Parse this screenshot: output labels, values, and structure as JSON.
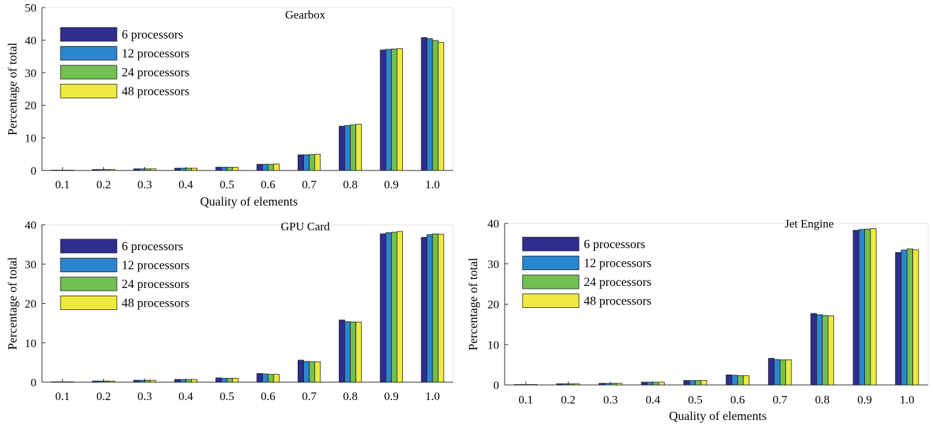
{
  "series_colors": [
    "#2e2e8e",
    "#2b86cf",
    "#72bf52",
    "#ede93f"
  ],
  "chart_data": [
    {
      "type": "bar",
      "title": "Gearbox",
      "xlabel": "Quality of elements",
      "ylabel": "Percentage of total",
      "ylim": [
        0,
        50
      ],
      "yticks": [
        "0",
        "10",
        "20",
        "30",
        "40",
        "50"
      ],
      "grid": false,
      "legend_position": "top-left",
      "categories": [
        "0.1",
        "0.2",
        "0.3",
        "0.4",
        "0.5",
        "0.6",
        "0.7",
        "0.8",
        "0.9",
        "1.0"
      ],
      "series": [
        {
          "name": "6 processors",
          "values": [
            0.1,
            0.3,
            0.5,
            0.7,
            1.0,
            1.9,
            4.8,
            13.6,
            37.0,
            40.8
          ]
        },
        {
          "name": "12 processors",
          "values": [
            0.1,
            0.3,
            0.5,
            0.7,
            1.0,
            1.9,
            4.8,
            13.8,
            37.2,
            40.5
          ]
        },
        {
          "name": "24 processors",
          "values": [
            0.1,
            0.3,
            0.5,
            0.7,
            1.0,
            1.9,
            4.9,
            14.0,
            37.3,
            39.9
          ]
        },
        {
          "name": "48 processors",
          "values": [
            0.1,
            0.3,
            0.5,
            0.7,
            1.0,
            2.0,
            5.0,
            14.2,
            37.4,
            39.3
          ]
        }
      ]
    },
    {
      "type": "bar",
      "title": "GPU Card",
      "xlabel": "",
      "ylabel": "Percentage of total",
      "ylim": [
        0,
        40
      ],
      "yticks": [
        "0",
        "10",
        "20",
        "30",
        "40"
      ],
      "grid": false,
      "legend_position": "top-left",
      "categories": [
        "0.1",
        "0.2",
        "0.3",
        "0.4",
        "0.5",
        "0.6",
        "0.7",
        "0.8",
        "0.9",
        "1.0"
      ],
      "series": [
        {
          "name": "6 processors",
          "values": [
            0.1,
            0.3,
            0.5,
            0.7,
            1.1,
            2.2,
            5.6,
            15.8,
            37.7,
            36.8
          ]
        },
        {
          "name": "12 processors",
          "values": [
            0.1,
            0.3,
            0.5,
            0.7,
            1.0,
            2.1,
            5.3,
            15.4,
            38.0,
            37.5
          ]
        },
        {
          "name": "24 processors",
          "values": [
            0.1,
            0.3,
            0.5,
            0.7,
            1.0,
            2.0,
            5.2,
            15.3,
            38.1,
            37.7
          ]
        },
        {
          "name": "48 processors",
          "values": [
            0.1,
            0.3,
            0.5,
            0.7,
            1.0,
            2.0,
            5.2,
            15.3,
            38.3,
            37.6
          ]
        }
      ]
    },
    {
      "type": "bar",
      "title": "Jet Engine",
      "xlabel": "Quality of elements",
      "ylabel": "Percentage of total",
      "ylim": [
        0,
        40
      ],
      "yticks": [
        "0",
        "10",
        "20",
        "30",
        "40"
      ],
      "grid": false,
      "legend_position": "top-left",
      "categories": [
        "0.1",
        "0.2",
        "0.3",
        "0.4",
        "0.5",
        "0.6",
        "0.7",
        "0.8",
        "0.9",
        "1.0"
      ],
      "series": [
        {
          "name": "6 processors",
          "values": [
            0.1,
            0.3,
            0.4,
            0.7,
            1.1,
            2.5,
            6.6,
            17.7,
            38.3,
            32.8
          ]
        },
        {
          "name": "12 processors",
          "values": [
            0.1,
            0.3,
            0.4,
            0.7,
            1.1,
            2.4,
            6.3,
            17.4,
            38.5,
            33.4
          ]
        },
        {
          "name": "24 processors",
          "values": [
            0.1,
            0.3,
            0.4,
            0.7,
            1.1,
            2.3,
            6.2,
            17.2,
            38.6,
            33.7
          ]
        },
        {
          "name": "48 processors",
          "values": [
            0.1,
            0.3,
            0.4,
            0.7,
            1.1,
            2.3,
            6.2,
            17.1,
            38.7,
            33.5
          ]
        }
      ]
    }
  ]
}
